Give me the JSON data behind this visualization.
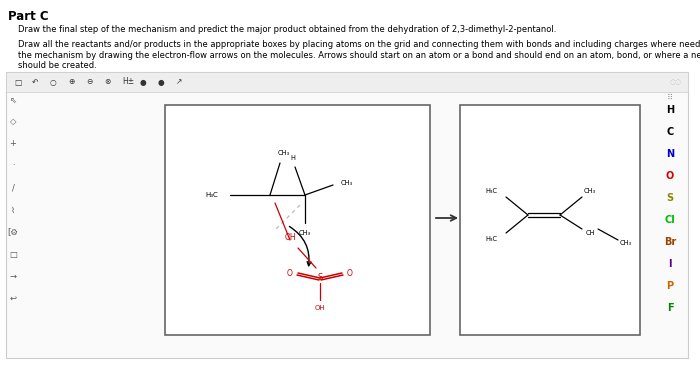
{
  "title": "Part C",
  "desc1": "Draw the final step of the mechanism and predict the major product obtained from the dehydration of 2,3-dimethyl-2-pentanol.",
  "desc2_lines": [
    "Draw all the reactants and/or products in the appropriate boxes by placing atoms on the grid and connecting them with bonds and including charges where needed. Indicate",
    "the mechanism by drawing the electron-flow arrows on the molecules. Arrows should start on an atom or a bond and should end on an atom, bond, or where a new bond",
    "should be created."
  ],
  "bg_color": "#ffffff",
  "editor_bg": "#f8f8f8",
  "toolbar_bg": "#eeeeee",
  "border_color": "#aaaaaa",
  "box_border": "#666666",
  "element_colors": {
    "H": "#000000",
    "C": "#000000",
    "N": "#0000cc",
    "O": "#cc0000",
    "S": "#888800",
    "Cl": "#00bb00",
    "Br": "#994400",
    "I": "#550088",
    "P": "#cc6600",
    "F": "#008800"
  },
  "red": "#cc0000",
  "black": "#000000",
  "gray": "#888888",
  "dashed_color": "#aaaaaa"
}
